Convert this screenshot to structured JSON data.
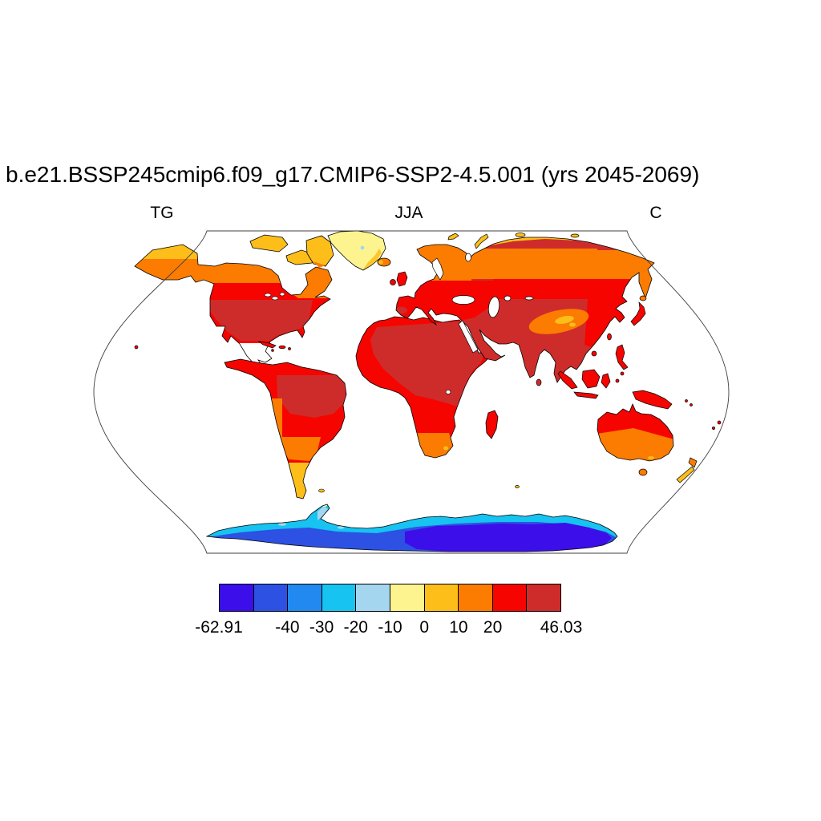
{
  "title": "b.e21.BSSP245cmip6.f09_g17.CMIP6-SSP2-4.5.001 (yrs 2045-2069)",
  "labels": {
    "left": "TG",
    "center": "JJA",
    "right": "C"
  },
  "chart_data": {
    "type": "heatmap",
    "subtype": "filled-contour-global-map",
    "projection": "Robinson",
    "variable": "TG",
    "season": "JJA",
    "units": "C",
    "data_min": -62.91,
    "data_max": 46.03,
    "contour_levels": [
      -50,
      -40,
      -30,
      -20,
      -10,
      0,
      10,
      20,
      30
    ],
    "colorbar": {
      "colors": [
        "#3B0EEA",
        "#2D51E3",
        "#2189F0",
        "#17C3F1",
        "#A5D6F0",
        "#FDF48F",
        "#FDBE1A",
        "#FB7C00",
        "#F60400",
        "#CE2C2B"
      ],
      "tick_labels": [
        "-62.91",
        "-40",
        "-30",
        "-20",
        "-10",
        "0",
        "10",
        "20",
        "46.03"
      ],
      "tick_positions": [
        0,
        0.2,
        0.3,
        0.4,
        0.5,
        0.6,
        0.7,
        0.8,
        1.0
      ]
    },
    "map_regions": {
      "greenland": "-10 to 0",
      "canadian_arctic": "0 to 10",
      "alaska_canada_scandinavia_siberia": "10 to 20",
      "usa_sahara_middle_east_india_china_amazon": "30 to 46.03 (warmest band)",
      "europe_mexico_tropics_se_asia_n_australia": "20 to 30",
      "s_australia_s_africa_s_south_america": "10 to 20",
      "patagonia_new_zealand": "0 to 10",
      "antarctica_coast": "-30 to -20",
      "antarctica_interior": "-62.91 to -50 (coldest band)"
    },
    "background": "#FFFFFF",
    "outline_color": "#3F3F3F",
    "coastline_color": "#000000"
  }
}
